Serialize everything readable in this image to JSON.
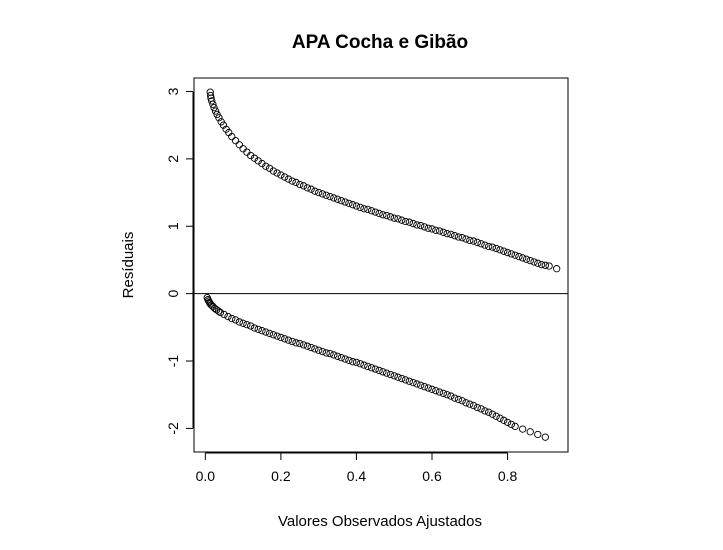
{
  "chart_data": {
    "type": "scatter",
    "title": "APA Cocha e Gibão",
    "xlabel": "Valores Observados Ajustados",
    "ylabel": "Resíduais",
    "xlim": [
      -0.03,
      0.96
    ],
    "ylim": [
      -2.35,
      3.2
    ],
    "xticks": [
      0.0,
      0.2,
      0.4,
      0.6,
      0.8
    ],
    "xtick_labels": [
      "0.0",
      "0.2",
      "0.4",
      "0.6",
      "0.8"
    ],
    "yticks": [
      -2,
      -1,
      0,
      1,
      2,
      3
    ],
    "ytick_labels": [
      "-2",
      "-1",
      "0",
      "1",
      "2",
      "3"
    ],
    "hline": 0,
    "grid": false,
    "marker": "open-circle",
    "series": [
      {
        "points": [
          [
            0.013,
            2.99
          ],
          [
            0.014,
            2.94
          ],
          [
            0.015,
            2.9
          ],
          [
            0.017,
            2.86
          ],
          [
            0.02,
            2.81
          ],
          [
            0.023,
            2.76
          ],
          [
            0.027,
            2.71
          ],
          [
            0.031,
            2.66
          ],
          [
            0.036,
            2.61
          ],
          [
            0.042,
            2.55
          ],
          [
            0.048,
            2.5
          ],
          [
            0.055,
            2.44
          ],
          [
            0.062,
            2.39
          ],
          [
            0.07,
            2.33
          ],
          [
            0.08,
            2.27
          ],
          [
            0.09,
            2.21
          ],
          [
            0.1,
            2.15
          ],
          [
            0.11,
            2.1
          ],
          [
            0.12,
            2.05
          ],
          [
            0.13,
            2.01
          ],
          [
            0.14,
            1.97
          ],
          [
            0.15,
            1.93
          ],
          [
            0.16,
            1.89
          ],
          [
            0.17,
            1.86
          ],
          [
            0.18,
            1.82
          ],
          [
            0.19,
            1.79
          ],
          [
            0.2,
            1.76
          ],
          [
            0.21,
            1.73
          ],
          [
            0.22,
            1.7
          ],
          [
            0.23,
            1.67
          ],
          [
            0.24,
            1.65
          ],
          [
            0.25,
            1.62
          ],
          [
            0.26,
            1.6
          ],
          [
            0.27,
            1.57
          ],
          [
            0.28,
            1.55
          ],
          [
            0.29,
            1.52
          ],
          [
            0.3,
            1.5
          ],
          [
            0.31,
            1.48
          ],
          [
            0.32,
            1.46
          ],
          [
            0.33,
            1.44
          ],
          [
            0.34,
            1.42
          ],
          [
            0.35,
            1.4
          ],
          [
            0.36,
            1.38
          ],
          [
            0.37,
            1.36
          ],
          [
            0.38,
            1.34
          ],
          [
            0.39,
            1.32
          ],
          [
            0.4,
            1.3
          ],
          [
            0.41,
            1.28
          ],
          [
            0.42,
            1.26
          ],
          [
            0.43,
            1.25
          ],
          [
            0.44,
            1.23
          ],
          [
            0.45,
            1.21
          ],
          [
            0.46,
            1.19
          ],
          [
            0.47,
            1.17
          ],
          [
            0.48,
            1.16
          ],
          [
            0.49,
            1.14
          ],
          [
            0.5,
            1.12
          ],
          [
            0.51,
            1.11
          ],
          [
            0.52,
            1.09
          ],
          [
            0.53,
            1.07
          ],
          [
            0.54,
            1.06
          ],
          [
            0.55,
            1.04
          ],
          [
            0.56,
            1.02
          ],
          [
            0.57,
            1.01
          ],
          [
            0.58,
            0.99
          ],
          [
            0.59,
            0.97
          ],
          [
            0.6,
            0.96
          ],
          [
            0.61,
            0.94
          ],
          [
            0.62,
            0.93
          ],
          [
            0.63,
            0.91
          ],
          [
            0.64,
            0.89
          ],
          [
            0.65,
            0.88
          ],
          [
            0.66,
            0.86
          ],
          [
            0.67,
            0.84
          ],
          [
            0.68,
            0.83
          ],
          [
            0.69,
            0.81
          ],
          [
            0.7,
            0.79
          ],
          [
            0.71,
            0.78
          ],
          [
            0.72,
            0.76
          ],
          [
            0.73,
            0.74
          ],
          [
            0.74,
            0.72
          ],
          [
            0.75,
            0.7
          ],
          [
            0.76,
            0.69
          ],
          [
            0.77,
            0.67
          ],
          [
            0.78,
            0.65
          ],
          [
            0.79,
            0.63
          ],
          [
            0.8,
            0.61
          ],
          [
            0.81,
            0.59
          ],
          [
            0.82,
            0.57
          ],
          [
            0.83,
            0.55
          ],
          [
            0.84,
            0.53
          ],
          [
            0.85,
            0.51
          ],
          [
            0.86,
            0.49
          ],
          [
            0.87,
            0.47
          ],
          [
            0.88,
            0.45
          ],
          [
            0.89,
            0.43
          ],
          [
            0.9,
            0.42
          ],
          [
            0.91,
            0.41
          ],
          [
            0.93,
            0.37
          ]
        ]
      },
      {
        "points": [
          [
            0.005,
            -0.06
          ],
          [
            0.007,
            -0.09
          ],
          [
            0.009,
            -0.11
          ],
          [
            0.011,
            -0.13
          ],
          [
            0.013,
            -0.15
          ],
          [
            0.016,
            -0.17
          ],
          [
            0.02,
            -0.19
          ],
          [
            0.025,
            -0.22
          ],
          [
            0.03,
            -0.24
          ],
          [
            0.035,
            -0.26
          ],
          [
            0.04,
            -0.28
          ],
          [
            0.05,
            -0.31
          ],
          [
            0.06,
            -0.34
          ],
          [
            0.07,
            -0.37
          ],
          [
            0.08,
            -0.39
          ],
          [
            0.09,
            -0.42
          ],
          [
            0.1,
            -0.44
          ],
          [
            0.11,
            -0.46
          ],
          [
            0.12,
            -0.48
          ],
          [
            0.13,
            -0.51
          ],
          [
            0.14,
            -0.53
          ],
          [
            0.15,
            -0.55
          ],
          [
            0.16,
            -0.57
          ],
          [
            0.17,
            -0.59
          ],
          [
            0.18,
            -0.61
          ],
          [
            0.19,
            -0.63
          ],
          [
            0.2,
            -0.65
          ],
          [
            0.21,
            -0.67
          ],
          [
            0.22,
            -0.69
          ],
          [
            0.23,
            -0.71
          ],
          [
            0.24,
            -0.73
          ],
          [
            0.25,
            -0.74
          ],
          [
            0.26,
            -0.76
          ],
          [
            0.27,
            -0.78
          ],
          [
            0.28,
            -0.8
          ],
          [
            0.29,
            -0.82
          ],
          [
            0.3,
            -0.84
          ],
          [
            0.31,
            -0.86
          ],
          [
            0.32,
            -0.88
          ],
          [
            0.33,
            -0.89
          ],
          [
            0.34,
            -0.91
          ],
          [
            0.35,
            -0.93
          ],
          [
            0.36,
            -0.95
          ],
          [
            0.37,
            -0.97
          ],
          [
            0.38,
            -0.99
          ],
          [
            0.39,
            -1.01
          ],
          [
            0.4,
            -1.02
          ],
          [
            0.41,
            -1.04
          ],
          [
            0.42,
            -1.06
          ],
          [
            0.43,
            -1.08
          ],
          [
            0.44,
            -1.1
          ],
          [
            0.45,
            -1.12
          ],
          [
            0.46,
            -1.14
          ],
          [
            0.47,
            -1.16
          ],
          [
            0.48,
            -1.18
          ],
          [
            0.49,
            -1.2
          ],
          [
            0.5,
            -1.22
          ],
          [
            0.51,
            -1.24
          ],
          [
            0.52,
            -1.26
          ],
          [
            0.53,
            -1.28
          ],
          [
            0.54,
            -1.3
          ],
          [
            0.55,
            -1.32
          ],
          [
            0.56,
            -1.34
          ],
          [
            0.57,
            -1.36
          ],
          [
            0.58,
            -1.38
          ],
          [
            0.59,
            -1.4
          ],
          [
            0.6,
            -1.42
          ],
          [
            0.61,
            -1.44
          ],
          [
            0.62,
            -1.46
          ],
          [
            0.63,
            -1.48
          ],
          [
            0.64,
            -1.5
          ],
          [
            0.65,
            -1.52
          ],
          [
            0.66,
            -1.55
          ],
          [
            0.67,
            -1.57
          ],
          [
            0.68,
            -1.59
          ],
          [
            0.69,
            -1.62
          ],
          [
            0.7,
            -1.64
          ],
          [
            0.71,
            -1.66
          ],
          [
            0.72,
            -1.69
          ],
          [
            0.73,
            -1.71
          ],
          [
            0.74,
            -1.74
          ],
          [
            0.75,
            -1.76
          ],
          [
            0.76,
            -1.79
          ],
          [
            0.77,
            -1.82
          ],
          [
            0.78,
            -1.85
          ],
          [
            0.79,
            -1.88
          ],
          [
            0.8,
            -1.91
          ],
          [
            0.81,
            -1.94
          ],
          [
            0.82,
            -1.97
          ],
          [
            0.84,
            -2.01
          ],
          [
            0.86,
            -2.05
          ],
          [
            0.88,
            -2.09
          ],
          [
            0.9,
            -2.13
          ]
        ]
      }
    ]
  }
}
